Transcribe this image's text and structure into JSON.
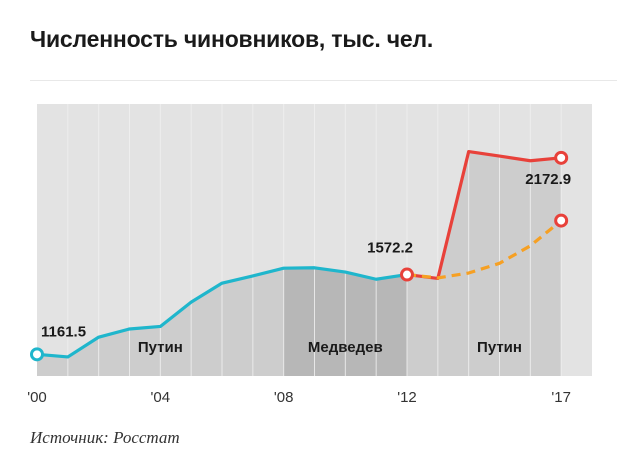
{
  "title": "Численность чиновников, тыс. чел.",
  "source": "Источник: Росстат",
  "colors": {
    "plot_bg": "#e3e3e3",
    "grid": "#f0f0f0",
    "area": "#cdcdcd",
    "area_medvedev": "#b7b7b7",
    "line_early": "#1fb6cc",
    "line_late": "#e8413a",
    "line_dashed": "#f6a023"
  },
  "chart_data": {
    "type": "line",
    "title": "Численность чиновников, тыс. чел.",
    "xlabel": "",
    "ylabel": "",
    "xlim": [
      2000,
      2018
    ],
    "ylim": [
      1050,
      2450
    ],
    "grid": true,
    "x_ticks": [
      {
        "value": 2000,
        "label": "'00"
      },
      {
        "value": 2004,
        "label": "'04"
      },
      {
        "value": 2008,
        "label": "'08"
      },
      {
        "value": 2012,
        "label": "'12"
      },
      {
        "value": 2017,
        "label": "'17"
      }
    ],
    "periods": [
      {
        "label": "Путин",
        "from": 2000,
        "to": 2008
      },
      {
        "label": "Медведев",
        "from": 2008,
        "to": 2012
      },
      {
        "label": "Путин",
        "from": 2012,
        "to": 2018
      }
    ],
    "series": [
      {
        "style": "solid",
        "color": "#1fb6cc",
        "x": [
          2000,
          2001,
          2002,
          2003,
          2004,
          2005,
          2006,
          2007,
          2008,
          2009,
          2010,
          2011,
          2012
        ],
        "y": [
          1161.5,
          1148,
          1250,
          1292,
          1305,
          1430,
          1528,
          1565,
          1605,
          1607,
          1585,
          1548,
          1572.2
        ]
      },
      {
        "style": "solid",
        "color": "#e8413a",
        "x": [
          2012,
          2013,
          2014,
          2015,
          2016,
          2017
        ],
        "y": [
          1572.2,
          1552,
          2205,
          2182,
          2158,
          2172.9
        ]
      },
      {
        "style": "dashed",
        "color": "#f6a023",
        "x": [
          2012,
          2013,
          2014,
          2015,
          2016,
          2017
        ],
        "y": [
          1572.2,
          1555,
          1580,
          1630,
          1720,
          1850
        ]
      }
    ],
    "annotations": [
      {
        "x": 2000,
        "y": 1161.5,
        "text": "1161.5"
      },
      {
        "x": 2012,
        "y": 1572.2,
        "text": "1572.2"
      },
      {
        "x": 2017,
        "y": 2172.9,
        "text": "2172.9"
      }
    ]
  }
}
